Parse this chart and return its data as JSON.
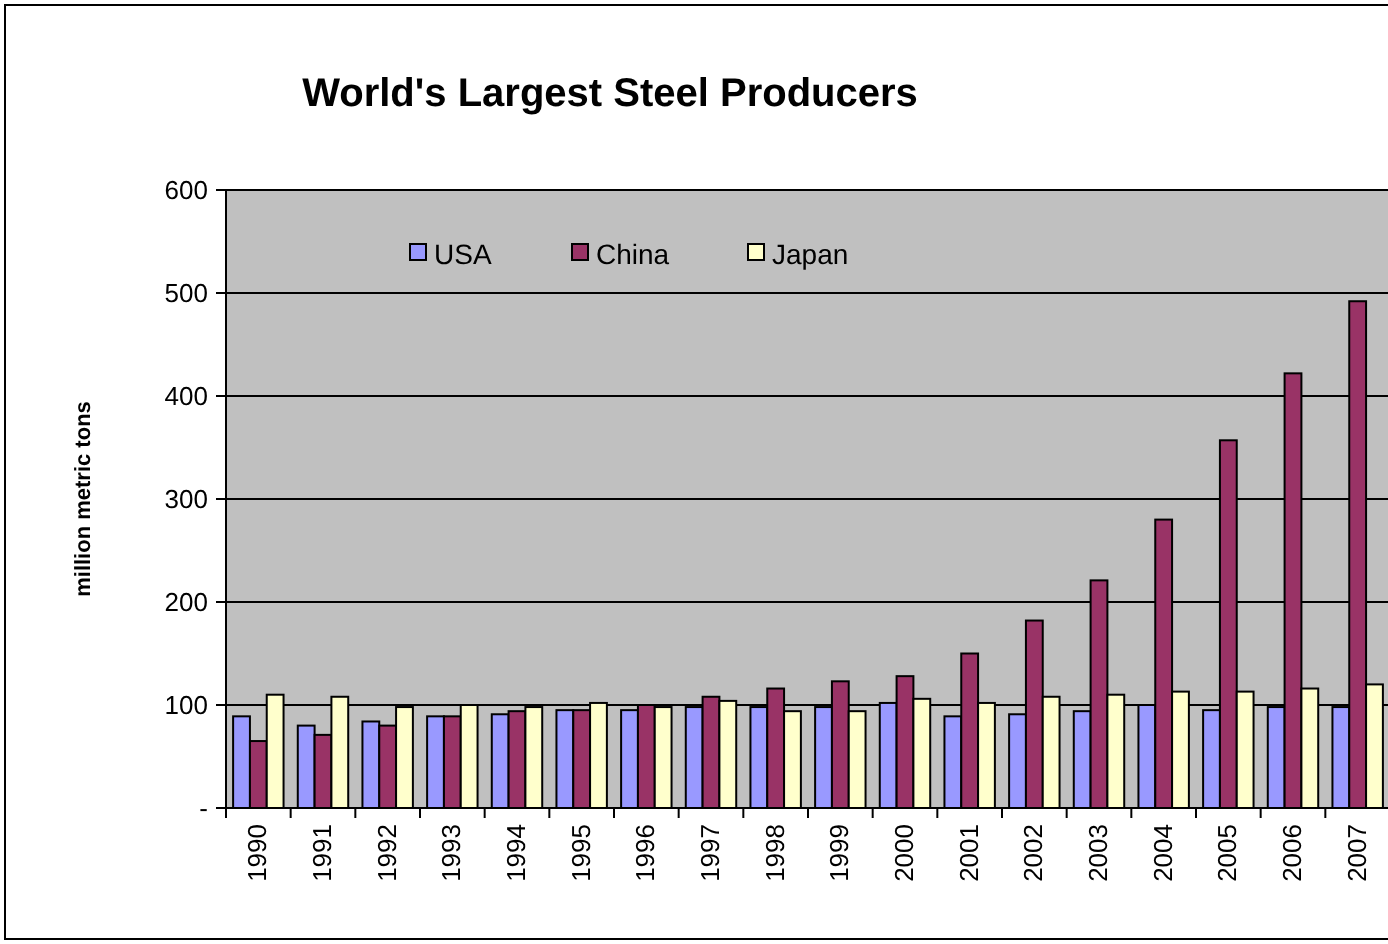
{
  "chart_data": {
    "type": "bar",
    "title": "World's Largest Steel Producers",
    "ylabel": "million metric tons",
    "categories": [
      "1990",
      "1991",
      "1992",
      "1993",
      "1994",
      "1995",
      "1996",
      "1997",
      "1998",
      "1999",
      "2000",
      "2001",
      "2002",
      "2003",
      "2004",
      "2005",
      "2006",
      "2007"
    ],
    "series": [
      {
        "name": "USA",
        "color": "#9999ff",
        "values": [
          89,
          80,
          84,
          89,
          91,
          95,
          95,
          98,
          98,
          98,
          102,
          89,
          91,
          94,
          100,
          95,
          98,
          98
        ]
      },
      {
        "name": "China",
        "color": "#993366",
        "values": [
          65,
          71,
          80,
          89,
          94,
          95,
          100,
          108,
          116,
          123,
          128,
          150,
          182,
          221,
          280,
          357,
          422,
          492
        ]
      },
      {
        "name": "Japan",
        "color": "#ffffcc",
        "values": [
          110,
          108,
          98,
          100,
          98,
          102,
          98,
          104,
          94,
          94,
          106,
          102,
          108,
          110,
          113,
          113,
          116,
          120
        ]
      }
    ],
    "ylim": [
      0,
      600
    ],
    "yticks": [
      {
        "value": 0,
        "label": "-"
      },
      100,
      200,
      300,
      400,
      500,
      600
    ],
    "grid": "y",
    "legend": "top left"
  }
}
